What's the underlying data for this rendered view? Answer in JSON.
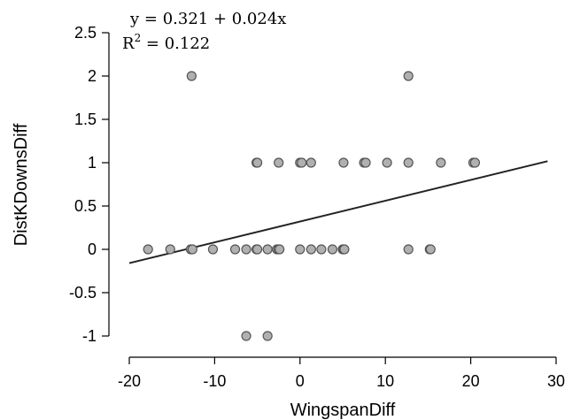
{
  "chart_data": {
    "type": "scatter",
    "title": "",
    "xlabel": "WingspanDiff",
    "ylabel": "DistKDownsDiff",
    "xlim": [
      -20,
      30
    ],
    "ylim": [
      -1,
      2.5
    ],
    "xticks": [
      -20,
      -10,
      0,
      10,
      20,
      30
    ],
    "yticks": [
      -1,
      -0.5,
      0,
      0.5,
      1,
      1.5,
      2,
      2.5
    ],
    "x_tick_labels": [
      "-20",
      "-10",
      "0",
      "10",
      "20",
      "30"
    ],
    "y_tick_labels": [
      "-1",
      "-0.5",
      "0",
      "0.5",
      "1",
      "1.5",
      "2",
      "2.5"
    ],
    "grid": false,
    "annotations": {
      "equation": "y = 0.321 + 0.024x",
      "r2_label": "R",
      "r2_sup": "2",
      "r2_value": " = 0.122"
    },
    "fit_line": {
      "intercept": 0.321,
      "slope": 0.024,
      "x_range": [
        -20,
        29
      ]
    },
    "points": [
      {
        "x": -12.7,
        "y": 2
      },
      {
        "x": 12.7,
        "y": 2
      },
      {
        "x": -5.1,
        "y": 1
      },
      {
        "x": -5.0,
        "y": 1
      },
      {
        "x": -2.5,
        "y": 1
      },
      {
        "x": 0.0,
        "y": 1
      },
      {
        "x": 0.2,
        "y": 1
      },
      {
        "x": 1.3,
        "y": 1
      },
      {
        "x": 5.1,
        "y": 1
      },
      {
        "x": 7.5,
        "y": 1
      },
      {
        "x": 7.7,
        "y": 1
      },
      {
        "x": 10.2,
        "y": 1
      },
      {
        "x": 12.7,
        "y": 1
      },
      {
        "x": 16.5,
        "y": 1
      },
      {
        "x": 20.3,
        "y": 1
      },
      {
        "x": 20.5,
        "y": 1
      },
      {
        "x": -17.8,
        "y": 0
      },
      {
        "x": -15.2,
        "y": 0
      },
      {
        "x": -12.8,
        "y": 0
      },
      {
        "x": -12.6,
        "y": 0
      },
      {
        "x": -10.2,
        "y": 0
      },
      {
        "x": -7.6,
        "y": 0
      },
      {
        "x": -6.3,
        "y": 0
      },
      {
        "x": -5.1,
        "y": 0
      },
      {
        "x": -5.0,
        "y": 0
      },
      {
        "x": -3.8,
        "y": 0
      },
      {
        "x": -2.7,
        "y": 0
      },
      {
        "x": -2.5,
        "y": 0
      },
      {
        "x": -2.4,
        "y": 0
      },
      {
        "x": 0.0,
        "y": 0
      },
      {
        "x": 1.3,
        "y": 0
      },
      {
        "x": 2.5,
        "y": 0
      },
      {
        "x": 3.8,
        "y": 0
      },
      {
        "x": 5.0,
        "y": 0
      },
      {
        "x": 5.1,
        "y": 0
      },
      {
        "x": 5.2,
        "y": 0
      },
      {
        "x": 12.7,
        "y": 0
      },
      {
        "x": 15.2,
        "y": 0
      },
      {
        "x": 15.3,
        "y": 0
      },
      {
        "x": -6.3,
        "y": -1
      },
      {
        "x": -3.8,
        "y": -1
      }
    ]
  }
}
